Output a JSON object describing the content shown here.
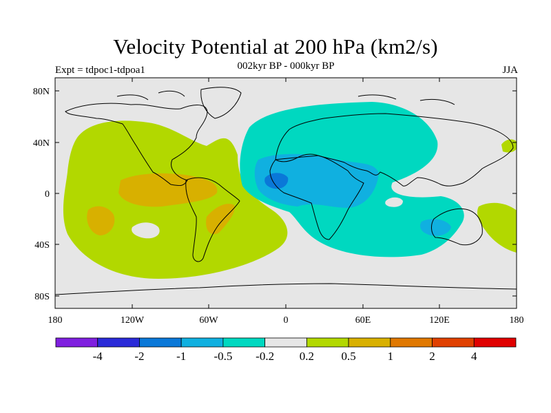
{
  "title": "Velocity Potential at 200 hPa (km2/s)",
  "subtitle": "002kyr BP - 000kyr BP",
  "left_label": "Expt = tdpoc1-tdpoa1",
  "right_label": "JJA",
  "background_color": "#e6e6e6",
  "lat_ticks": [
    "80N",
    "40N",
    "0",
    "40S",
    "80S"
  ],
  "lon_ticks": [
    "180",
    "120W",
    "60W",
    "0",
    "60E",
    "120E",
    "180"
  ],
  "colorbar": {
    "colors": [
      "#7f1fdf",
      "#2a2ad8",
      "#0a78d8",
      "#10b0e0",
      "#00d8c0",
      "#e6e6e6",
      "#b2d800",
      "#d8b000",
      "#e07800",
      "#e04000",
      "#e00000"
    ],
    "labels": [
      "-4",
      "-2",
      "-1",
      "-0.5",
      "-0.2",
      "0.2",
      "0.5",
      "1",
      "2",
      "4"
    ]
  },
  "field_colors": {
    "positive_weak": "#b2d800",
    "positive_mid": "#d8b000",
    "negative_weak": "#00d8c0",
    "negative_mid": "#10b0e0",
    "negative_strong": "#0a78d8"
  }
}
